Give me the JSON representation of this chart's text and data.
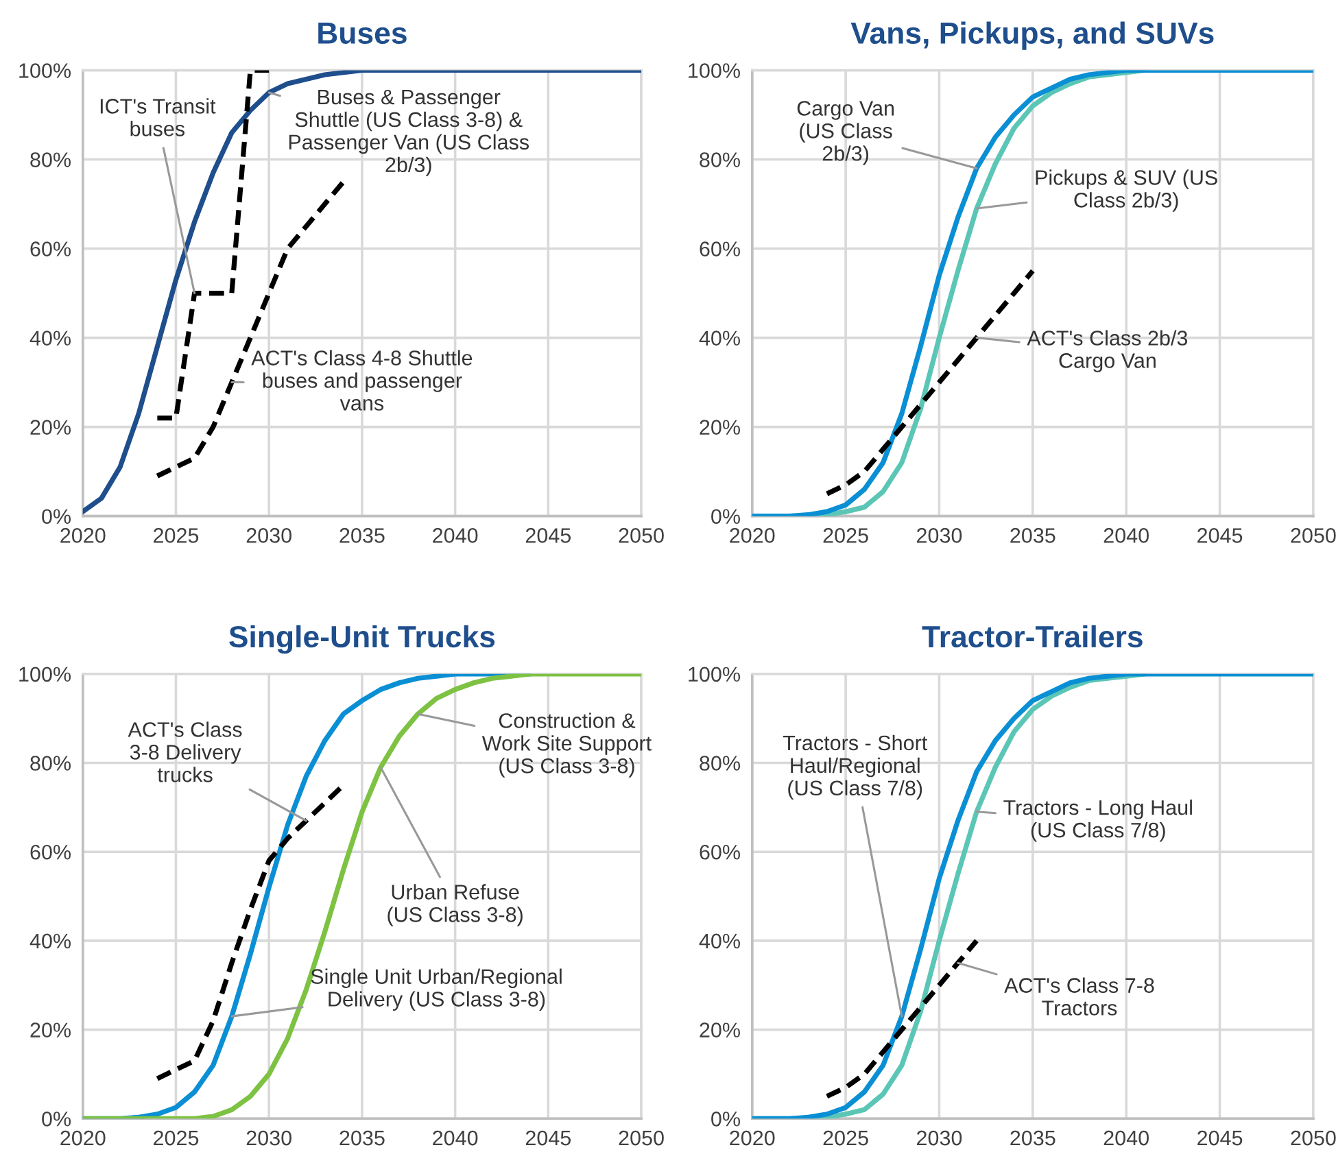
{
  "chart_data": [
    {
      "type": "line",
      "title": "Buses",
      "x": [
        2020,
        2021,
        2022,
        2023,
        2024,
        2025,
        2026,
        2027,
        2028,
        2029,
        2030,
        2031,
        2032,
        2033,
        2034,
        2035,
        2036,
        2037,
        2038,
        2039,
        2040,
        2041,
        2042,
        2043,
        2044,
        2045,
        2046,
        2047,
        2048,
        2049,
        2050
      ],
      "series": [
        {
          "color": "#1f4e8c",
          "line_style": "solid",
          "values": [
            1,
            4,
            11,
            23,
            38,
            53,
            66,
            77,
            86,
            91,
            95,
            97,
            98,
            99,
            99.5,
            100,
            100,
            100,
            100,
            100,
            100,
            100,
            100,
            100,
            100,
            100,
            100,
            100,
            100,
            100,
            100
          ]
        },
        {
          "color": "#000000",
          "line_style": "dashed",
          "x": [
            2024,
            2025,
            2026,
            2027,
            2028,
            2029,
            2030
          ],
          "values": [
            22,
            22,
            50,
            50,
            50,
            100,
            100
          ]
        },
        {
          "color": "#000000",
          "line_style": "dashed",
          "x": [
            2024,
            2025,
            2026,
            2027,
            2028,
            2029,
            2030,
            2031,
            2032,
            2033,
            2034
          ],
          "values": [
            9,
            11,
            13,
            20,
            30,
            40,
            50,
            60,
            65,
            70,
            75
          ]
        }
      ],
      "annotations": [
        {
          "text": "ICT's Transit\nbuses",
          "x": 2026,
          "y": 50
        },
        {
          "text": "Buses & Passenger\nShuttle (US Class 3-8) &\nPassenger Van (US Class\n2b/3)",
          "x": 2030,
          "y": 95
        },
        {
          "text": "ACT's Class 4-8 Shuttle\nbuses and passenger\nvans",
          "x": 2028,
          "y": 30
        }
      ],
      "xlim": [
        2020,
        2050
      ],
      "xticks": [
        2020,
        2025,
        2030,
        2035,
        2040,
        2045,
        2050
      ],
      "ylim": [
        0,
        100
      ],
      "yticks": [
        {
          "value": 0,
          "label": "0%"
        },
        {
          "value": 20,
          "label": "20%"
        },
        {
          "value": 40,
          "label": "40%"
        },
        {
          "value": 60,
          "label": "60%"
        },
        {
          "value": 80,
          "label": "80%"
        },
        {
          "value": 100,
          "label": "100%"
        }
      ],
      "grid": true
    },
    {
      "type": "line",
      "title": "Vans, Pickups, and SUVs",
      "x": [
        2020,
        2021,
        2022,
        2023,
        2024,
        2025,
        2026,
        2027,
        2028,
        2029,
        2030,
        2031,
        2032,
        2033,
        2034,
        2035,
        2036,
        2037,
        2038,
        2039,
        2040,
        2041,
        2042,
        2043,
        2044,
        2045,
        2046,
        2047,
        2048,
        2049,
        2050
      ],
      "series": [
        {
          "color": "#5bc6b5",
          "line_style": "solid",
          "values": [
            0,
            0,
            0,
            0.1,
            0.3,
            1,
            2,
            5.5,
            12,
            24,
            40,
            55,
            69,
            79,
            87,
            92,
            95,
            97,
            98.5,
            99,
            99.5,
            100,
            null,
            null,
            null,
            null,
            null,
            null,
            null,
            null,
            null
          ]
        },
        {
          "color": "#0a8fd4",
          "line_style": "solid",
          "values": [
            0,
            0,
            0,
            0.3,
            1,
            2.5,
            6,
            12,
            23,
            38,
            54,
            67,
            78,
            85,
            90,
            94,
            96,
            98,
            99,
            99.5,
            100,
            100,
            100,
            100,
            100,
            100,
            100,
            100,
            100,
            100,
            100
          ]
        },
        {
          "color": "#000000",
          "line_style": "dashed",
          "x": [
            2024,
            2025,
            2026,
            2027,
            2028,
            2029,
            2030,
            2031,
            2032,
            2033,
            2034,
            2035
          ],
          "values": [
            5,
            7,
            10,
            15,
            20,
            25,
            30,
            35,
            40,
            45,
            50,
            55
          ]
        }
      ],
      "annotations": [
        {
          "text": "Cargo Van\n(US Class\n2b/3)",
          "x": 2032,
          "y": 78
        },
        {
          "text": "Pickups & SUV (US\nClass 2b/3)",
          "x": 2032,
          "y": 69
        },
        {
          "text": "ACT's Class 2b/3\nCargo Van",
          "x": 2032,
          "y": 40
        }
      ],
      "xlim": [
        2020,
        2050
      ],
      "xticks": [
        2020,
        2025,
        2030,
        2035,
        2040,
        2045,
        2050
      ],
      "ylim": [
        0,
        100
      ],
      "yticks": [
        {
          "value": 0,
          "label": "0%"
        },
        {
          "value": 20,
          "label": "20%"
        },
        {
          "value": 40,
          "label": "40%"
        },
        {
          "value": 60,
          "label": "60%"
        },
        {
          "value": 80,
          "label": "80%"
        },
        {
          "value": 100,
          "label": "100%"
        }
      ],
      "grid": true
    },
    {
      "type": "line",
      "title": "Single-Unit Trucks",
      "x": [
        2020,
        2021,
        2022,
        2023,
        2024,
        2025,
        2026,
        2027,
        2028,
        2029,
        2030,
        2031,
        2032,
        2033,
        2034,
        2035,
        2036,
        2037,
        2038,
        2039,
        2040,
        2041,
        2042,
        2043,
        2044,
        2045,
        2046,
        2047,
        2048,
        2049,
        2050
      ],
      "series": [
        {
          "color": "#0a8fd4",
          "line_style": "solid",
          "values": [
            0,
            0,
            0,
            0.3,
            1,
            2.5,
            6,
            12,
            23,
            37,
            52,
            66,
            77,
            85,
            91,
            94,
            96.5,
            98,
            99,
            99.5,
            100,
            100,
            100,
            100,
            100,
            null,
            null,
            null,
            null,
            null,
            null
          ]
        },
        {
          "color": "#7dc242",
          "line_style": "solid",
          "values": [
            0,
            0,
            0,
            0,
            0,
            0,
            0,
            0.5,
            2,
            5,
            10,
            18,
            29,
            42,
            56,
            69,
            79,
            86,
            91,
            94.5,
            96.5,
            98,
            99,
            99.5,
            100,
            100,
            100,
            100,
            100,
            100,
            100
          ]
        },
        {
          "color": "#000000",
          "line_style": "dashed",
          "x": [
            2024,
            2025,
            2026,
            2027,
            2028,
            2029,
            2030,
            2031,
            2032,
            2033,
            2034
          ],
          "values": [
            9,
            11,
            13,
            22,
            35,
            47,
            58,
            63,
            67,
            71,
            75
          ]
        }
      ],
      "annotations": [
        {
          "text": "ACT's Class\n3-8 Delivery\ntrucks",
          "x": 2032,
          "y": 67
        },
        {
          "text": "Construction &\nWork Site Support\n(US Class 3-8)",
          "x": 2038,
          "y": 91
        },
        {
          "text": "Urban Refuse\n(US Class 3-8)",
          "x": 2036,
          "y": 79
        },
        {
          "text": "Single Unit Urban/Regional\nDelivery (US Class 3-8)",
          "x": 2028,
          "y": 23
        }
      ],
      "xlim": [
        2020,
        2050
      ],
      "xticks": [
        2020,
        2025,
        2030,
        2035,
        2040,
        2045,
        2050
      ],
      "ylim": [
        0,
        100
      ],
      "yticks": [
        {
          "value": 0,
          "label": "0%"
        },
        {
          "value": 20,
          "label": "20%"
        },
        {
          "value": 40,
          "label": "40%"
        },
        {
          "value": 60,
          "label": "60%"
        },
        {
          "value": 80,
          "label": "80%"
        },
        {
          "value": 100,
          "label": "100%"
        }
      ],
      "grid": true
    },
    {
      "type": "line",
      "title": "Tractor-Trailers",
      "x": [
        2020,
        2021,
        2022,
        2023,
        2024,
        2025,
        2026,
        2027,
        2028,
        2029,
        2030,
        2031,
        2032,
        2033,
        2034,
        2035,
        2036,
        2037,
        2038,
        2039,
        2040,
        2041,
        2042,
        2043,
        2044,
        2045,
        2046,
        2047,
        2048,
        2049,
        2050
      ],
      "series": [
        {
          "color": "#5bc6b5",
          "line_style": "solid",
          "values": [
            0,
            0,
            0,
            0.1,
            0.3,
            1,
            2,
            5.5,
            12,
            24,
            40,
            55,
            69,
            79,
            87,
            92,
            95,
            97,
            98.5,
            99,
            99.5,
            100,
            null,
            null,
            null,
            null,
            null,
            null,
            null,
            null,
            null
          ]
        },
        {
          "color": "#0a8fd4",
          "line_style": "solid",
          "values": [
            0,
            0,
            0,
            0.3,
            1,
            2.5,
            6,
            12,
            23,
            38,
            54,
            67,
            78,
            85,
            90,
            94,
            96,
            98,
            99,
            99.5,
            100,
            100,
            100,
            100,
            100,
            100,
            100,
            100,
            100,
            100,
            100
          ]
        },
        {
          "color": "#000000",
          "line_style": "dashed",
          "x": [
            2024,
            2025,
            2026,
            2027,
            2028,
            2029,
            2030,
            2031,
            2032
          ],
          "values": [
            5,
            7,
            10,
            15,
            20,
            25,
            30,
            35,
            40
          ]
        }
      ],
      "annotations": [
        {
          "text": "Tractors - Short\nHaul/Regional\n(US Class 7/8)",
          "x": 2028,
          "y": 23
        },
        {
          "text": "Tractors - Long Haul\n(US Class 7/8)",
          "x": 2032,
          "y": 69
        },
        {
          "text": "ACT's Class 7-8\nTractors",
          "x": 2031,
          "y": 35
        }
      ],
      "xlim": [
        2020,
        2050
      ],
      "xticks": [
        2020,
        2025,
        2030,
        2035,
        2040,
        2045,
        2050
      ],
      "ylim": [
        0,
        100
      ],
      "yticks": [
        {
          "value": 0,
          "label": "0%"
        },
        {
          "value": 20,
          "label": "20%"
        },
        {
          "value": 40,
          "label": "40%"
        },
        {
          "value": 60,
          "label": "60%"
        },
        {
          "value": 80,
          "label": "80%"
        },
        {
          "value": 100,
          "label": "100%"
        }
      ],
      "grid": true
    }
  ]
}
